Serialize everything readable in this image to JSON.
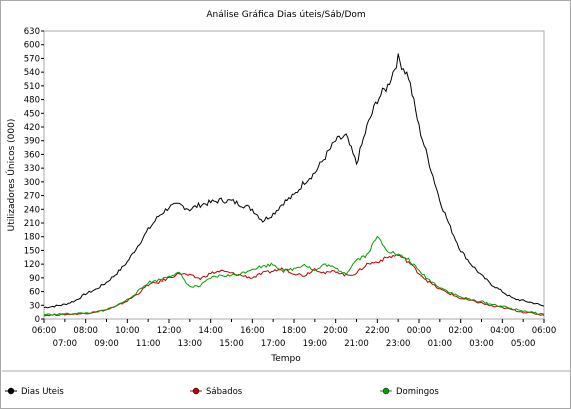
{
  "chart_data": {
    "type": "line",
    "title": "Análise Gráfica Dias úteis/Sáb/Dom",
    "xlabel": "Tempo",
    "ylabel": "Utilizadores Únicos (000)",
    "ylim": [
      0,
      630
    ],
    "y_ticks": [
      "0",
      "30",
      "60",
      "90",
      "120",
      "150",
      "180",
      "210",
      "240",
      "270",
      "300",
      "330",
      "360",
      "390",
      "420",
      "450",
      "480",
      "510",
      "540",
      "570",
      "600",
      "630"
    ],
    "x_ticks_upper": [
      "06:00",
      "08:00",
      "10:00",
      "12:00",
      "14:00",
      "16:00",
      "18:00",
      "20:00",
      "22:00",
      "00:00",
      "02:00",
      "04:00",
      "06:00"
    ],
    "x_ticks_lower": [
      "07:00",
      "09:00",
      "11:00",
      "13:00",
      "15:00",
      "17:00",
      "19:00",
      "21:00",
      "23:00",
      "01:00",
      "03:00",
      "05:00"
    ],
    "grid": false,
    "legend_position": "bottom",
    "x": [
      "06:00",
      "06:30",
      "07:00",
      "07:30",
      "08:00",
      "08:30",
      "09:00",
      "09:30",
      "10:00",
      "10:30",
      "11:00",
      "11:30",
      "12:00",
      "12:30",
      "13:00",
      "13:30",
      "14:00",
      "14:30",
      "15:00",
      "15:30",
      "16:00",
      "16:30",
      "17:00",
      "17:30",
      "18:00",
      "18:30",
      "19:00",
      "19:30",
      "20:00",
      "20:30",
      "21:00",
      "21:30",
      "22:00",
      "22:30",
      "23:00",
      "23:30",
      "00:00",
      "00:30",
      "01:00",
      "01:30",
      "02:00",
      "02:30",
      "03:00",
      "03:30",
      "04:00",
      "04:30",
      "05:00",
      "05:30",
      "06:00"
    ],
    "series": [
      {
        "name": "Dias Uteis",
        "color": "#000000",
        "values": [
          25,
          28,
          32,
          40,
          55,
          65,
          80,
          100,
          125,
          160,
          195,
          225,
          245,
          250,
          240,
          250,
          255,
          260,
          258,
          250,
          240,
          215,
          230,
          255,
          270,
          300,
          320,
          355,
          390,
          400,
          340,
          420,
          480,
          510,
          570,
          530,
          420,
          340,
          260,
          200,
          150,
          120,
          95,
          75,
          60,
          45,
          40,
          35,
          28
        ]
      },
      {
        "name": "Sábados",
        "color": "#c00000",
        "values": [
          8,
          9,
          10,
          11,
          12,
          16,
          20,
          28,
          40,
          55,
          75,
          80,
          90,
          100,
          95,
          88,
          100,
          105,
          100,
          95,
          90,
          100,
          105,
          110,
          100,
          95,
          110,
          100,
          105,
          95,
          100,
          120,
          125,
          135,
          140,
          125,
          100,
          80,
          65,
          55,
          45,
          40,
          35,
          28,
          25,
          20,
          15,
          12,
          8
        ]
      },
      {
        "name": "Domingos",
        "color": "#00a000",
        "values": [
          10,
          10,
          11,
          12,
          13,
          15,
          20,
          30,
          42,
          60,
          80,
          85,
          95,
          100,
          70,
          72,
          90,
          95,
          95,
          100,
          110,
          115,
          120,
          105,
          110,
          120,
          105,
          120,
          110,
          100,
          130,
          140,
          180,
          150,
          140,
          130,
          105,
          85,
          70,
          58,
          48,
          42,
          38,
          32,
          28,
          22,
          18,
          14,
          10
        ]
      }
    ]
  }
}
